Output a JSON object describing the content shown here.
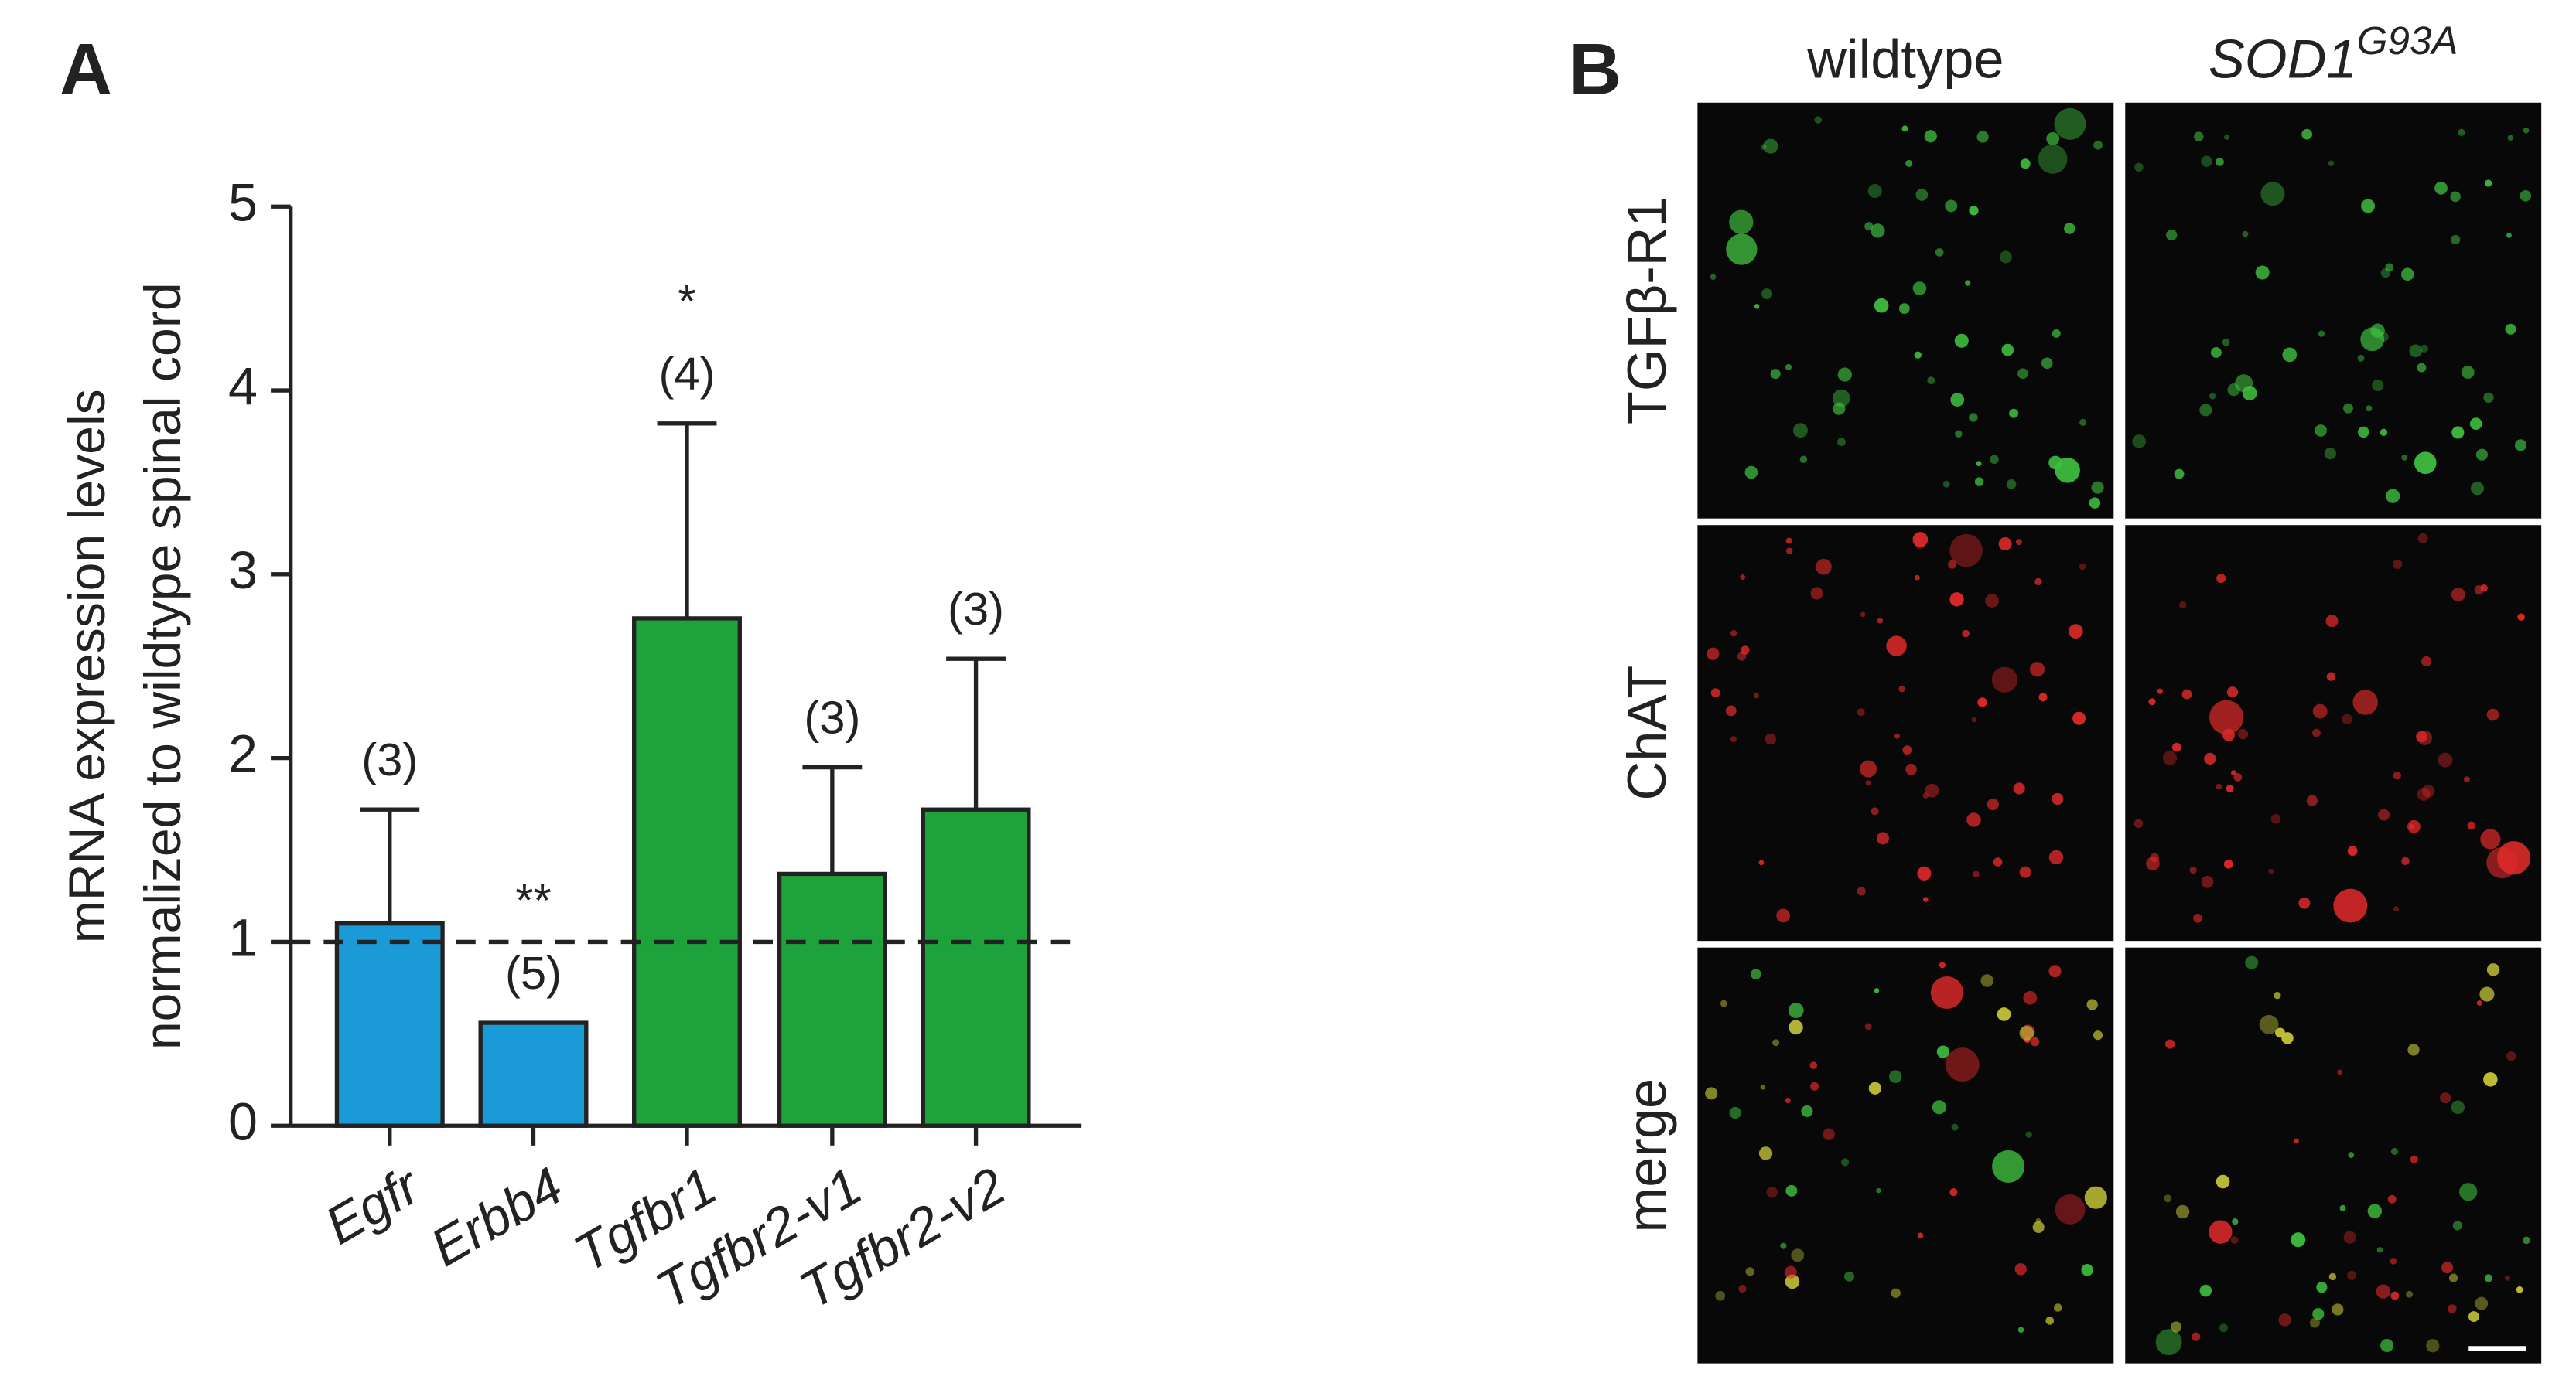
{
  "chart_data": {
    "type": "bar",
    "panel_label": "A",
    "y_label": [
      "mRNA expression levels",
      "normalized to wildtype spinal cord"
    ],
    "categories": [
      "Egfr",
      "Erbb4",
      "Tgfbr1",
      "Tgfbr2-v1",
      "Tgfbr2-v2"
    ],
    "values": [
      1.1,
      0.56,
      2.76,
      1.37,
      1.72
    ],
    "errors": [
      0.62,
      null,
      1.06,
      0.58,
      0.82
    ],
    "colors": [
      "#1a9ad6",
      "#1a9ad6",
      "#1ea33c",
      "#1ea33c",
      "#1ea33c"
    ],
    "n_labels": [
      "(3)",
      "(5)",
      "(4)",
      "(3)",
      "(3)"
    ],
    "significance": [
      null,
      "**",
      "*",
      null,
      null
    ],
    "reference_line": 1,
    "ylim": [
      0,
      5
    ],
    "yticks": [
      0,
      1,
      2,
      3,
      4,
      5
    ]
  },
  "panel_b": {
    "label": "B",
    "columns": [
      {
        "text": "wildtype"
      },
      {
        "text": "SOD1",
        "superscript": "G93A"
      }
    ],
    "rows": [
      {
        "text": "TGFβ-R1",
        "color": "#2db82d"
      },
      {
        "text": "ChAT",
        "color": "#d42020"
      },
      {
        "text": "merge",
        "color": "#111111"
      }
    ]
  }
}
